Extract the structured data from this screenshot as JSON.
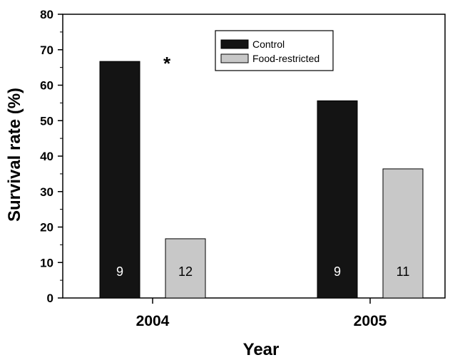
{
  "chart_data": {
    "type": "bar",
    "categories": [
      "2004",
      "2005"
    ],
    "series": [
      {
        "name": "Control",
        "values": [
          66.7,
          55.6
        ],
        "n": [
          "9",
          "9"
        ],
        "color": "#141414",
        "n_color": "#ffffff"
      },
      {
        "name": "Food-restricted",
        "values": [
          16.7,
          36.4
        ],
        "n": [
          "12",
          "11"
        ],
        "color": "#c8c8c8",
        "n_color": "#000000"
      }
    ],
    "xlabel": "Year",
    "ylabel": "Survival rate (%)",
    "ylim": [
      0,
      80
    ],
    "yticks": [
      0,
      10,
      20,
      30,
      40,
      50,
      60,
      70,
      80
    ],
    "legend_position": "top-center",
    "grid": false,
    "annotations": [
      {
        "text": "*",
        "category": "2004"
      }
    ]
  }
}
